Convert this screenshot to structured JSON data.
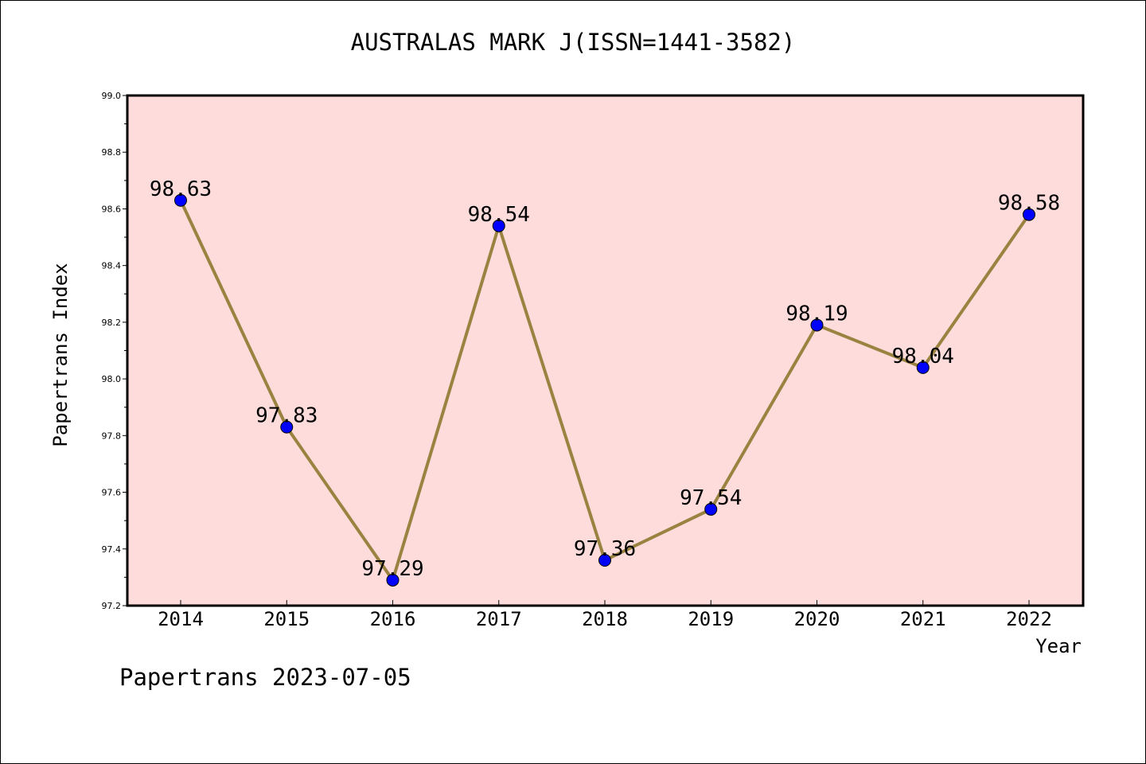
{
  "chart_data": {
    "type": "line",
    "title": "AUSTRALAS MARK J(ISSN=1441-3582)",
    "xlabel": "Year",
    "ylabel": "Papertrans Index",
    "categories": [
      "2014",
      "2015",
      "2016",
      "2017",
      "2018",
      "2019",
      "2020",
      "2021",
      "2022"
    ],
    "values": [
      98.63,
      97.83,
      97.29,
      98.54,
      97.36,
      97.54,
      98.19,
      98.04,
      98.58
    ],
    "data_labels": [
      "98.63",
      "97.83",
      "97.29",
      "98.54",
      "97.36",
      "97.54",
      "98.19",
      "98.04",
      "98.58"
    ],
    "ylim": [
      97.2,
      99.0
    ],
    "yticks": [
      "97.2",
      "97.4",
      "97.6",
      "97.8",
      "98.0",
      "98.2",
      "98.4",
      "98.6",
      "98.8",
      "99.0"
    ],
    "grid": false,
    "colors": {
      "plot_background": "#ffdcdc",
      "line": "#9a8240",
      "marker": "#0000ff"
    }
  },
  "footer": {
    "note": "Papertrans 2023-07-05"
  }
}
